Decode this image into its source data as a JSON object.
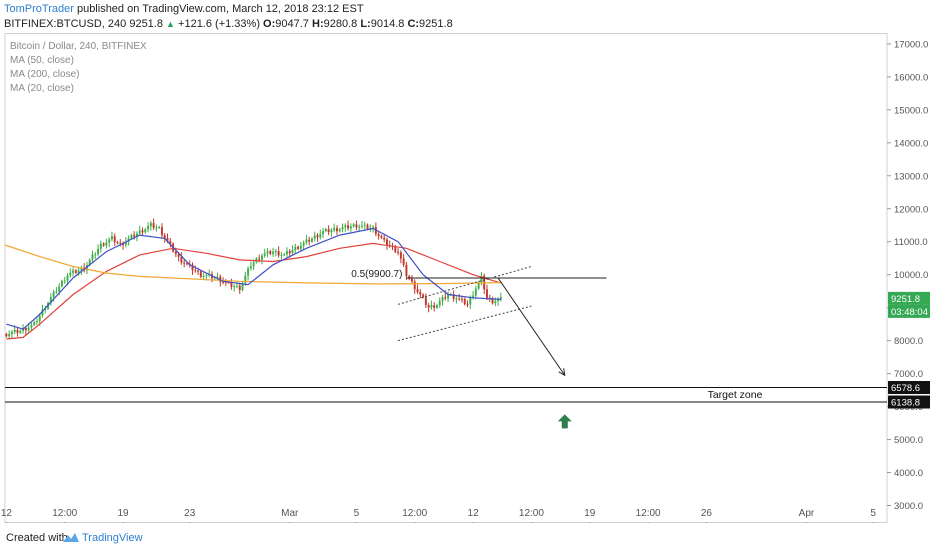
{
  "header": {
    "author": "TomProTrader",
    "published": "published on TradingView.com, March 12, 2018 23:12 EST",
    "symbol": "BITFINEX:BTCUSD, 240",
    "last": "9251.8",
    "change": "+121.6 (+1.33%)",
    "open_label": "O:",
    "open": "9047.7",
    "high_label": "H:",
    "high": "9280.8",
    "low_label": "L:",
    "low": "9014.8",
    "close_label": "C:",
    "close": "9251.8"
  },
  "legend": {
    "title": "Bitcoin / Dollar, 240, BITFINEX",
    "ma50": "MA (50, close)",
    "ma200": "MA (200, close)",
    "ma20": "MA (20, close)"
  },
  "footer": {
    "created_with": "Created with",
    "brand": "TradingView"
  },
  "colors": {
    "up": "#3fae49",
    "down": "#c0392b",
    "ma50": "#e0413a",
    "ma200": "#f0a830",
    "ma20": "#3f51c8",
    "price_label": "#34a853",
    "target_arrow": "#2e7d4f",
    "brand": "#2f7fcf"
  },
  "chart_data": {
    "type": "candlestick",
    "y_axis": {
      "range": [
        2500,
        17300
      ],
      "ticks": [
        "17000.0",
        "16000.0",
        "15000.0",
        "14000.0",
        "13000.0",
        "12000.0",
        "11000.0",
        "10000.0",
        "9000.0",
        "8000.0",
        "7000.0",
        "6000.0",
        "5000.0",
        "4000.0",
        "3000.0"
      ]
    },
    "x_axis": {
      "range": [
        "2018-02-11 22:00",
        "2018-04-05 20:00"
      ],
      "ticks": [
        {
          "t": "2018-02-12 00:00",
          "label": "12"
        },
        {
          "t": "2018-02-15 12:00",
          "label": "12:00"
        },
        {
          "t": "2018-02-19 00:00",
          "label": "19"
        },
        {
          "t": "2018-02-23 00:00",
          "label": "23"
        },
        {
          "t": "2018-03-01 00:00",
          "label": "Mar"
        },
        {
          "t": "2018-03-05 00:00",
          "label": "5"
        },
        {
          "t": "2018-03-08 12:00",
          "label": "12:00"
        },
        {
          "t": "2018-03-12 00:00",
          "label": "12"
        },
        {
          "t": "2018-03-15 12:00",
          "label": "12:00"
        },
        {
          "t": "2018-03-19 00:00",
          "label": "19"
        },
        {
          "t": "2018-03-22 12:00",
          "label": "12:00"
        },
        {
          "t": "2018-03-26 00:00",
          "label": "26"
        },
        {
          "t": "2018-04-01 00:00",
          "label": "Apr"
        },
        {
          "t": "2018-04-05 00:00",
          "label": "5"
        }
      ]
    },
    "price_series": [
      [
        "2018-02-12 00:00",
        8200
      ],
      [
        "2018-02-12 20:00",
        8300
      ],
      [
        "2018-02-13 16:00",
        8500
      ],
      [
        "2018-02-14 16:00",
        9300
      ],
      [
        "2018-02-15 16:00",
        10000
      ],
      [
        "2018-02-16 16:00",
        10200
      ],
      [
        "2018-02-17 16:00",
        10900
      ],
      [
        "2018-02-18 08:00",
        11100
      ],
      [
        "2018-02-18 20:00",
        10900
      ],
      [
        "2018-02-19 16:00",
        11200
      ],
      [
        "2018-02-20 16:00",
        11500
      ],
      [
        "2018-02-21 04:00",
        11400
      ],
      [
        "2018-02-21 16:00",
        11000
      ],
      [
        "2018-02-22 08:00",
        10500
      ],
      [
        "2018-02-22 20:00",
        10300
      ],
      [
        "2018-02-23 16:00",
        10000
      ],
      [
        "2018-02-24 16:00",
        9900
      ],
      [
        "2018-02-25 08:00",
        9700
      ],
      [
        "2018-02-26 00:00",
        9600
      ],
      [
        "2018-02-26 16:00",
        10300
      ],
      [
        "2018-02-27 08:00",
        10600
      ],
      [
        "2018-02-28 00:00",
        10700
      ],
      [
        "2018-02-28 16:00",
        10600
      ],
      [
        "2018-03-01 08:00",
        10800
      ],
      [
        "2018-03-02 00:00",
        11000
      ],
      [
        "2018-03-03 00:00",
        11300
      ],
      [
        "2018-03-04 00:00",
        11400
      ],
      [
        "2018-03-05 00:00",
        11500
      ],
      [
        "2018-03-06 00:00",
        11400
      ],
      [
        "2018-03-06 16:00",
        11000
      ],
      [
        "2018-03-07 12:00",
        10700
      ],
      [
        "2018-03-08 00:00",
        10000
      ],
      [
        "2018-03-08 16:00",
        9500
      ],
      [
        "2018-03-09 08:00",
        9000
      ],
      [
        "2018-03-09 20:00",
        9100
      ],
      [
        "2018-03-10 12:00",
        9400
      ],
      [
        "2018-03-11 00:00",
        9300
      ],
      [
        "2018-03-11 16:00",
        9100
      ],
      [
        "2018-03-12 04:00",
        9600
      ],
      [
        "2018-03-12 12:00",
        9900
      ],
      [
        "2018-03-12 20:00",
        9300
      ],
      [
        "2018-03-13 04:00",
        9200
      ],
      [
        "2018-03-13 16:00",
        9252
      ]
    ],
    "moving_averages": [
      {
        "name": "MA (50, close)",
        "points": [
          [
            "2018-02-12 00:00",
            8050
          ],
          [
            "2018-02-13 00:00",
            8100
          ],
          [
            "2018-02-14 00:00",
            8500
          ],
          [
            "2018-02-16 00:00",
            9400
          ],
          [
            "2018-02-18 00:00",
            10100
          ],
          [
            "2018-02-20 00:00",
            10600
          ],
          [
            "2018-02-22 00:00",
            10800
          ],
          [
            "2018-02-24 00:00",
            10650
          ],
          [
            "2018-02-26 00:00",
            10450
          ],
          [
            "2018-02-28 00:00",
            10400
          ],
          [
            "2018-03-02 00:00",
            10550
          ],
          [
            "2018-03-04 00:00",
            10800
          ],
          [
            "2018-03-06 00:00",
            10950
          ],
          [
            "2018-03-08 00:00",
            10800
          ],
          [
            "2018-03-10 00:00",
            10400
          ],
          [
            "2018-03-12 00:00",
            10000
          ],
          [
            "2018-03-13 16:00",
            9750
          ]
        ]
      },
      {
        "name": "MA (200, close)",
        "points": [
          [
            "2018-02-11 22:00",
            10900
          ],
          [
            "2018-02-14 00:00",
            10550
          ],
          [
            "2018-02-16 00:00",
            10250
          ],
          [
            "2018-02-18 00:00",
            10050
          ],
          [
            "2018-02-20 00:00",
            9950
          ],
          [
            "2018-02-22 00:00",
            9900
          ],
          [
            "2018-02-26 00:00",
            9800
          ],
          [
            "2018-03-02 00:00",
            9750
          ],
          [
            "2018-03-06 00:00",
            9720
          ],
          [
            "2018-03-10 00:00",
            9730
          ],
          [
            "2018-03-13 16:00",
            9760
          ]
        ]
      },
      {
        "name": "MA (20, close)",
        "points": [
          [
            "2018-02-12 00:00",
            8500
          ],
          [
            "2018-02-13 00:00",
            8350
          ],
          [
            "2018-02-14 00:00",
            8800
          ],
          [
            "2018-02-16 00:00",
            9900
          ],
          [
            "2018-02-18 00:00",
            10700
          ],
          [
            "2018-02-20 00:00",
            11200
          ],
          [
            "2018-02-21 12:00",
            11100
          ],
          [
            "2018-02-23 00:00",
            10300
          ],
          [
            "2018-02-25 00:00",
            9800
          ],
          [
            "2018-02-26 12:00",
            9700
          ],
          [
            "2018-02-28 00:00",
            10300
          ],
          [
            "2018-03-02 00:00",
            10800
          ],
          [
            "2018-03-04 00:00",
            11200
          ],
          [
            "2018-03-06 00:00",
            11400
          ],
          [
            "2018-03-07 12:00",
            11000
          ],
          [
            "2018-03-09 00:00",
            10000
          ],
          [
            "2018-03-10 12:00",
            9400
          ],
          [
            "2018-03-12 00:00",
            9300
          ],
          [
            "2018-03-13 16:00",
            9250
          ]
        ]
      }
    ],
    "annotations": {
      "fib_label": "0.5(9900.7)",
      "fib_level": 9900.7,
      "fib_range": [
        "2018-03-08 00:00",
        "2018-03-20 00:00"
      ],
      "channel_upper": [
        [
          "2018-03-07 12:00",
          9100
        ],
        [
          "2018-03-15 12:00",
          10250
        ]
      ],
      "channel_lower": [
        [
          "2018-03-07 12:00",
          8000
        ],
        [
          "2018-03-15 12:00",
          9050
        ]
      ],
      "projection_arrow": [
        [
          "2018-03-13 12:00",
          9900
        ],
        [
          "2018-03-17 12:00",
          6950
        ]
      ],
      "target_label": "Target zone",
      "target_zone": [
        6138.8,
        6578.6
      ],
      "target_upper_label": "6578.6",
      "target_lower_label": "6138.8",
      "up_arrow_at": [
        "2018-03-17 12:00",
        5550
      ],
      "current_price_label": "9251.8",
      "countdown": "03:48:04"
    }
  }
}
